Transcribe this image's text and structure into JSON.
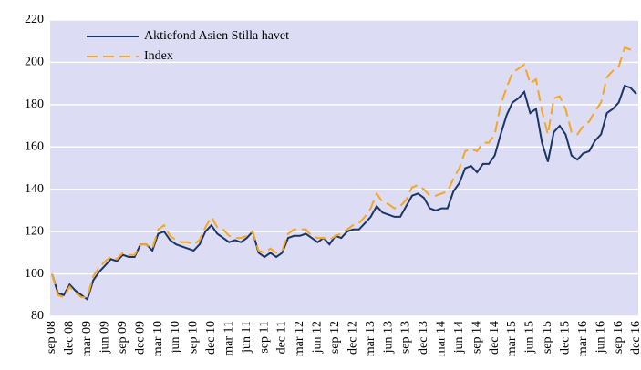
{
  "chart_data": {
    "type": "line",
    "categories": [
      "sep 08",
      null,
      null,
      "dec 08",
      null,
      null,
      "mar 09",
      null,
      null,
      "jun 09",
      null,
      null,
      "sep 09",
      null,
      null,
      "dec 09",
      null,
      null,
      "mar 10",
      null,
      null,
      "jun 10",
      null,
      null,
      "sep 10",
      null,
      null,
      "dec 10",
      null,
      null,
      "mar 11",
      null,
      null,
      "jun 11",
      null,
      null,
      "sep 11",
      null,
      null,
      "dec 11",
      null,
      null,
      "mar 12",
      null,
      null,
      "jun 12",
      null,
      null,
      "sep 12",
      null,
      null,
      "dec 12",
      null,
      null,
      "mar 13",
      null,
      null,
      "jun 13",
      null,
      null,
      "sep 13",
      null,
      null,
      "dec 13",
      null,
      null,
      "mar 14",
      null,
      null,
      "jun 14",
      null,
      null,
      "sep 14",
      null,
      null,
      "dec 14",
      null,
      null,
      "mar 15",
      null,
      null,
      "jun 15",
      null,
      null,
      "sep 15",
      null,
      null,
      "dec 15",
      null,
      null,
      "mar 16",
      null,
      null,
      "jun 16",
      null,
      null,
      "sep 16",
      null,
      null,
      "dec 16"
    ],
    "series": [
      {
        "name": "Aktiefond Asien Stilla havet",
        "color": "#1b3566",
        "dash": false,
        "values": [
          100,
          91,
          90,
          95,
          92,
          90,
          88,
          97,
          101,
          104,
          107,
          106,
          109,
          108,
          108,
          114,
          114,
          111,
          119,
          120,
          116,
          114,
          113,
          112,
          111,
          114,
          120,
          123,
          119,
          117,
          115,
          116,
          115,
          117,
          120,
          110,
          108,
          110,
          108,
          110,
          117,
          118,
          118,
          119,
          117,
          115,
          117,
          114,
          118,
          117,
          120,
          121,
          121,
          124,
          127,
          132,
          129,
          128,
          127,
          127,
          132,
          137,
          138,
          136,
          131,
          130,
          131,
          131,
          139,
          143,
          150,
          151,
          148,
          152,
          152,
          156,
          166,
          175,
          181,
          183,
          186,
          176,
          178,
          162,
          153,
          167,
          170,
          166,
          156,
          154,
          157,
          158,
          163,
          166,
          176,
          178,
          181,
          189,
          188,
          185
        ]
      },
      {
        "name": "Index",
        "color": "#f5a623",
        "dash": true,
        "values": [
          100,
          90,
          89,
          94,
          91,
          89,
          89,
          99,
          103,
          106,
          108,
          107,
          110,
          109,
          109,
          114,
          114,
          112,
          121,
          123,
          118,
          116,
          115,
          115,
          114,
          116,
          122,
          127,
          122,
          121,
          118,
          117,
          117,
          118,
          120,
          111,
          110,
          112,
          110,
          111,
          119,
          121,
          121,
          121,
          118,
          117,
          117,
          116,
          118,
          119,
          121,
          123,
          124,
          127,
          131,
          138,
          134,
          133,
          131,
          132,
          135,
          141,
          142,
          140,
          137,
          137,
          138,
          139,
          145,
          150,
          158,
          159,
          158,
          162,
          162,
          166,
          180,
          188,
          195,
          197,
          199,
          190,
          192,
          177,
          166,
          183,
          184,
          178,
          167,
          166,
          170,
          172,
          177,
          181,
          193,
          196,
          198,
          207,
          206,
          205
        ]
      }
    ],
    "ylim": [
      80,
      220
    ],
    "yticks": [
      80,
      100,
      120,
      140,
      160,
      180,
      200,
      220
    ],
    "grid": true
  }
}
